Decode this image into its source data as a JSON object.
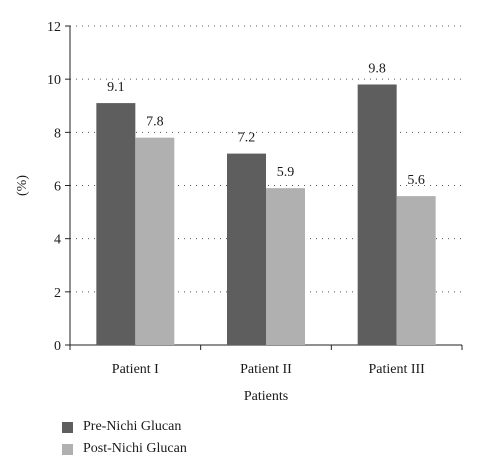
{
  "chart_data": {
    "type": "bar",
    "title": "",
    "xlabel": "Patients",
    "ylabel": "(%)",
    "ylim": [
      0,
      12
    ],
    "yticks": [
      0,
      2,
      4,
      6,
      8,
      10,
      12
    ],
    "grid": "horizontal dotted",
    "categories": [
      "Patient I",
      "Patient II",
      "Patient III"
    ],
    "series": [
      {
        "name": "Pre-Nichi Glucan",
        "color": "#5e5e5e",
        "values": [
          9.1,
          7.2,
          9.8
        ],
        "labels": [
          "9.1",
          "7.2",
          "9.8"
        ]
      },
      {
        "name": "Post-Nichi Glucan",
        "color": "#b0b0b0",
        "values": [
          7.8,
          5.9,
          5.6
        ],
        "labels": [
          "7.8",
          "5.9",
          "5.6"
        ]
      }
    ],
    "legend_position": "bottom-left"
  }
}
